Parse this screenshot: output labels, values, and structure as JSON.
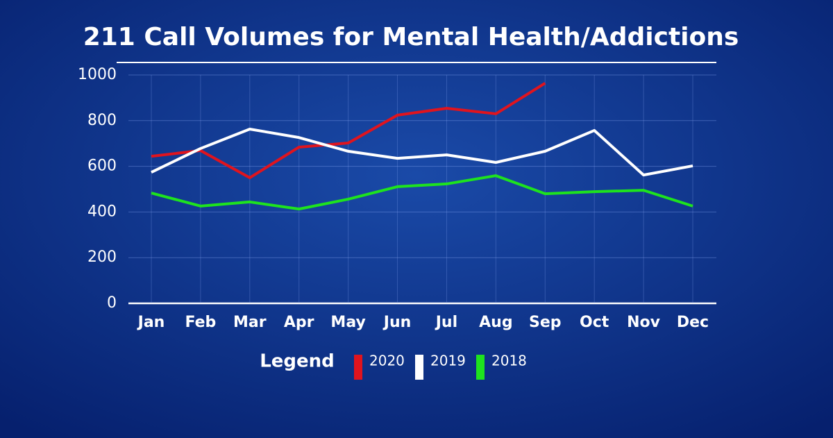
{
  "chart_data": {
    "type": "line",
    "title": "211 Call Volumes for Mental Health/Addictions",
    "categories": [
      "Jan",
      "Feb",
      "Mar",
      "Apr",
      "May",
      "Jun",
      "Jul",
      "Aug",
      "Sep",
      "Oct",
      "Nov",
      "Dec"
    ],
    "series": [
      {
        "name": "2020",
        "color": "#e0141e",
        "values": [
          644,
          669,
          550,
          684,
          702,
          824,
          854,
          830,
          964,
          null,
          null,
          null
        ]
      },
      {
        "name": "2019",
        "color": "#ffffff",
        "values": [
          574,
          678,
          763,
          726,
          666,
          635,
          650,
          617,
          666,
          757,
          562,
          602
        ]
      },
      {
        "name": "2018",
        "color": "#1ee31e",
        "values": [
          483,
          426,
          444,
          413,
          456,
          511,
          523,
          559,
          480,
          489,
          495,
          426
        ]
      }
    ],
    "legend_title": "Legend",
    "ylim": [
      0,
      1000
    ],
    "yticks": [
      0,
      200,
      400,
      600,
      800,
      1000
    ],
    "grid": true
  }
}
